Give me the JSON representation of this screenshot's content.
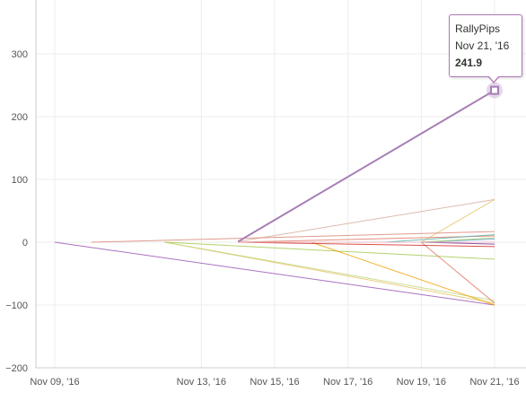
{
  "chart_data": {
    "type": "line",
    "x_ticks": [
      "Nov 09, '16",
      "Nov 13, '16",
      "Nov 15, '16",
      "Nov 17, '16",
      "Nov 19, '16",
      "Nov 21, '16"
    ],
    "y_ticks": [
      "300",
      "200",
      "100",
      "0",
      "−100",
      "−200"
    ],
    "ylim": [
      -200,
      300
    ],
    "xlim": [
      "2016-11-08",
      "2016-11-21"
    ],
    "grid": true,
    "series": [
      {
        "name": "RallyPips",
        "color": "#a67eb5",
        "width": 2,
        "highlighted": true,
        "points": [
          [
            "2016-11-14",
            1
          ],
          [
            "2016-11-21",
            241.9
          ]
        ]
      },
      {
        "color": "#9b59b6",
        "points": [
          [
            "2016-11-09",
            0
          ],
          [
            "2016-11-21",
            -100
          ]
        ]
      },
      {
        "color": "#d5b0a0",
        "points": [
          [
            "2016-11-14",
            1
          ],
          [
            "2016-11-21",
            68
          ]
        ]
      },
      {
        "color": "#e9c46a",
        "points": [
          [
            "2016-11-19",
            0
          ],
          [
            "2016-11-21",
            68
          ]
        ]
      },
      {
        "color": "#d98a7a",
        "points": [
          [
            "2016-11-10",
            0
          ],
          [
            "2016-11-21",
            17
          ]
        ]
      },
      {
        "color": "#e07b6a",
        "points": [
          [
            "2016-11-14",
            0
          ],
          [
            "2016-11-21",
            10
          ]
        ]
      },
      {
        "color": "#e9c46a",
        "points": [
          [
            "2016-11-12",
            0
          ],
          [
            "2016-11-21",
            -97
          ]
        ]
      },
      {
        "color": "#c1d87a",
        "points": [
          [
            "2016-11-12",
            0
          ],
          [
            "2016-11-21",
            -93
          ]
        ]
      },
      {
        "color": "#a7c957",
        "points": [
          [
            "2016-11-12",
            0
          ],
          [
            "2016-11-21",
            -27
          ]
        ]
      },
      {
        "color": "#f0a500",
        "points": [
          [
            "2016-11-16",
            0
          ],
          [
            "2016-11-21",
            -100
          ]
        ]
      },
      {
        "color": "#e07b6a",
        "points": [
          [
            "2016-11-19",
            0
          ],
          [
            "2016-11-21",
            -97
          ]
        ]
      },
      {
        "color": "#5ab4ac",
        "points": [
          [
            "2016-11-18",
            0
          ],
          [
            "2016-11-21",
            12
          ]
        ]
      },
      {
        "color": "#6aa5d8",
        "points": [
          [
            "2016-11-19",
            0
          ],
          [
            "2016-11-21",
            5
          ]
        ]
      },
      {
        "color": "#d73027",
        "points": [
          [
            "2016-11-14",
            0
          ],
          [
            "2016-11-21",
            -7
          ]
        ]
      },
      {
        "color": "#9ccc65",
        "points": [
          [
            "2016-11-19",
            0
          ],
          [
            "2016-11-21",
            7
          ]
        ]
      },
      {
        "color": "#7b3294",
        "points": [
          [
            "2016-11-19",
            0
          ],
          [
            "2016-11-21",
            -3
          ]
        ]
      },
      {
        "color": "#e6b0c0",
        "points": [
          [
            "2016-11-14",
            0
          ],
          [
            "2016-11-21",
            0
          ]
        ]
      }
    ],
    "tooltip": {
      "series": "RallyPips",
      "date": "Nov 21, '16",
      "value": "241.9"
    }
  }
}
